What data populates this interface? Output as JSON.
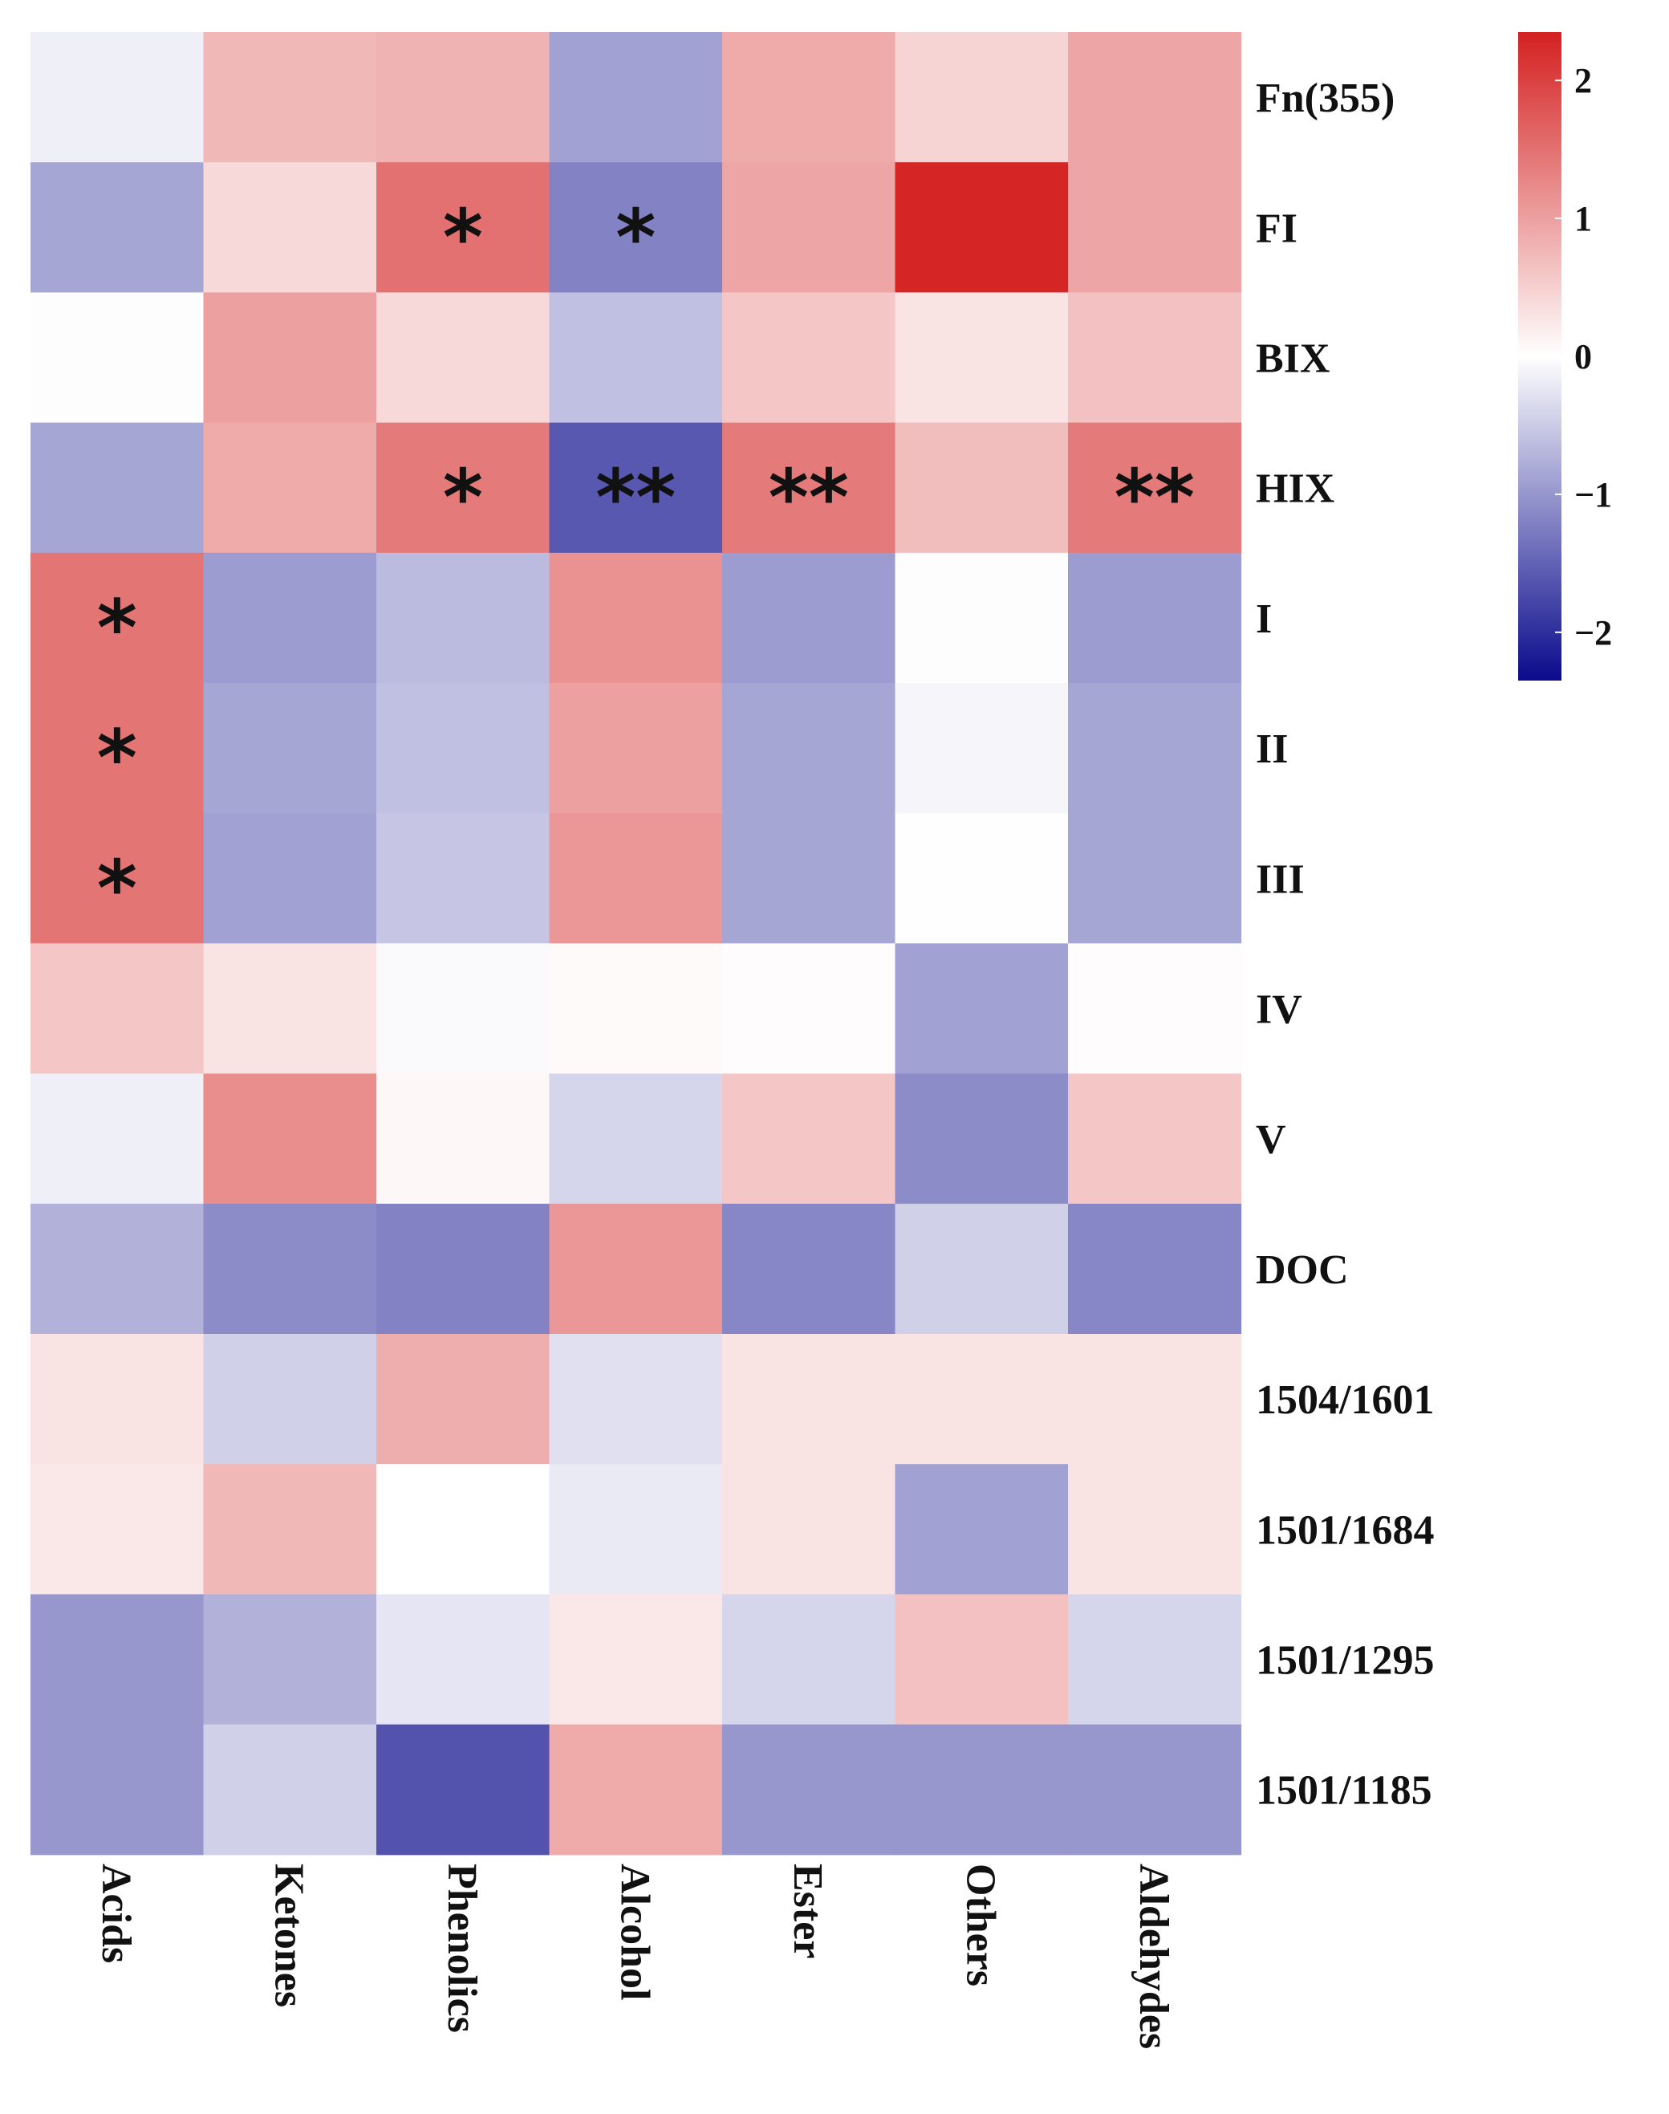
{
  "chart_data": {
    "type": "heatmap",
    "title": "",
    "columns": [
      "Acids",
      "Ketones",
      "Phenolics",
      "Alcohol",
      "Ester",
      "Others",
      "Aldehydes"
    ],
    "rows": [
      "Fn(355)",
      "FI",
      "BIX",
      "HIX",
      "I",
      "II",
      "III",
      "IV",
      "V",
      "DOC",
      "1504/1601",
      "1501/1684",
      "1501/1295",
      "1501/1185"
    ],
    "values": [
      [
        -0.15,
        0.75,
        0.8,
        -0.9,
        0.9,
        0.45,
        0.95
      ],
      [
        -0.85,
        0.4,
        1.5,
        -1.2,
        0.95,
        2.3,
        0.95
      ],
      [
        -0.02,
        1.0,
        0.4,
        -0.6,
        0.6,
        0.3,
        0.65
      ],
      [
        -0.85,
        0.9,
        1.4,
        -1.6,
        1.4,
        0.7,
        1.4
      ],
      [
        1.45,
        -0.95,
        -0.65,
        1.15,
        -0.95,
        -0.02,
        -0.95
      ],
      [
        1.45,
        -0.85,
        -0.6,
        1.0,
        -0.85,
        -0.1,
        -0.85
      ],
      [
        1.45,
        -0.9,
        -0.55,
        1.1,
        -0.85,
        -0.01,
        -0.85
      ],
      [
        0.6,
        0.3,
        -0.05,
        0.05,
        0.03,
        -0.9,
        0.03
      ],
      [
        -0.15,
        1.2,
        0.08,
        -0.4,
        0.6,
        -1.1,
        0.6
      ],
      [
        -0.75,
        -1.1,
        -1.2,
        1.1,
        -1.15,
        -0.45,
        -1.15
      ],
      [
        0.3,
        -0.45,
        0.85,
        -0.3,
        0.3,
        0.3,
        0.3
      ],
      [
        0.25,
        0.75,
        0.0,
        -0.2,
        0.3,
        -0.9,
        0.3
      ],
      [
        -1.0,
        -0.75,
        -0.25,
        0.25,
        -0.4,
        0.65,
        -0.4
      ],
      [
        -1.0,
        -0.45,
        -1.65,
        0.9,
        -1.0,
        -1.0,
        -1.0
      ]
    ],
    "significance": [
      [
        "",
        "",
        "",
        "",
        "",
        "",
        ""
      ],
      [
        "",
        "",
        "*",
        "*",
        "",
        "",
        ""
      ],
      [
        "",
        "",
        "",
        "",
        "",
        "",
        ""
      ],
      [
        "",
        "",
        "*",
        "**",
        "**",
        "",
        "**"
      ],
      [
        "*",
        "",
        "",
        "",
        "",
        "",
        ""
      ],
      [
        "*",
        "",
        "",
        "",
        "",
        "",
        ""
      ],
      [
        "*",
        "",
        "",
        "",
        "",
        "",
        ""
      ],
      [
        "",
        "",
        "",
        "",
        "",
        "",
        ""
      ],
      [
        "",
        "",
        "",
        "",
        "",
        "",
        ""
      ],
      [
        "",
        "",
        "",
        "",
        "",
        "",
        ""
      ],
      [
        "",
        "",
        "",
        "",
        "",
        "",
        ""
      ],
      [
        "",
        "",
        "",
        "",
        "",
        "",
        ""
      ],
      [
        "",
        "",
        "",
        "",
        "",
        "",
        ""
      ],
      [
        "",
        "",
        "",
        "",
        "",
        "",
        ""
      ]
    ],
    "colorbar": {
      "range": [
        -2.35,
        2.35
      ],
      "ticks": [
        2,
        1,
        0,
        -1,
        -2
      ],
      "tick_labels": [
        "2",
        "1",
        "0",
        "−1",
        "−2"
      ],
      "colors": {
        "low": "#0a0a8c",
        "mid": "#ffffff",
        "high": "#d42020"
      }
    }
  }
}
